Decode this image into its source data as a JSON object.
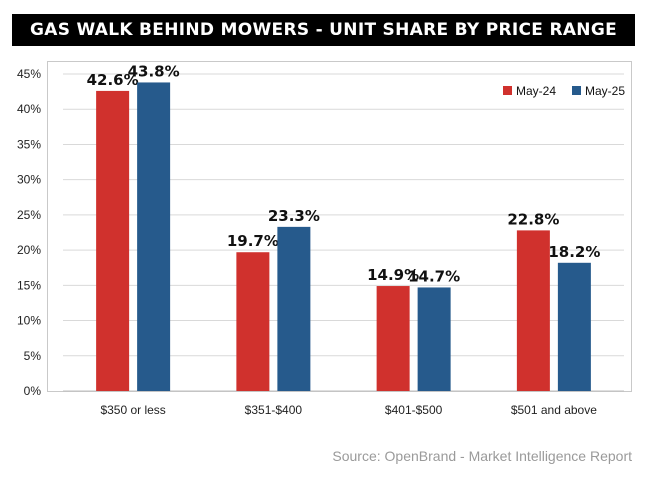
{
  "header": {
    "title": "GAS WALK BEHIND MOWERS - UNIT SHARE BY PRICE RANGE"
  },
  "footer": {
    "source": "Source: OpenBrand - Market Intelligence Report"
  },
  "chart_data": {
    "type": "bar",
    "title": "GAS WALK BEHIND MOWERS - UNIT SHARE BY PRICE RANGE",
    "categories": [
      "$350 or less",
      "$351-$400",
      "$401-$500",
      "$501 and above"
    ],
    "series": [
      {
        "name": "May-24",
        "values": [
          42.6,
          19.7,
          14.9,
          22.8
        ],
        "color": "#d0312d"
      },
      {
        "name": "May-25",
        "values": [
          43.8,
          23.3,
          14.7,
          18.2
        ],
        "color": "#265a8c"
      }
    ],
    "data_labels": [
      [
        "42.6%",
        "19.7%",
        "14.9%",
        "22.8%"
      ],
      [
        "43.8%",
        "23.3%",
        "14.7%",
        "18.2%"
      ]
    ],
    "yticks": [
      "0%",
      "5%",
      "10%",
      "15%",
      "20%",
      "25%",
      "30%",
      "35%",
      "40%",
      "45%"
    ],
    "ylim": [
      0,
      45
    ],
    "xlabel": "",
    "ylabel": "",
    "grid": true,
    "legend_position": "top-right"
  }
}
